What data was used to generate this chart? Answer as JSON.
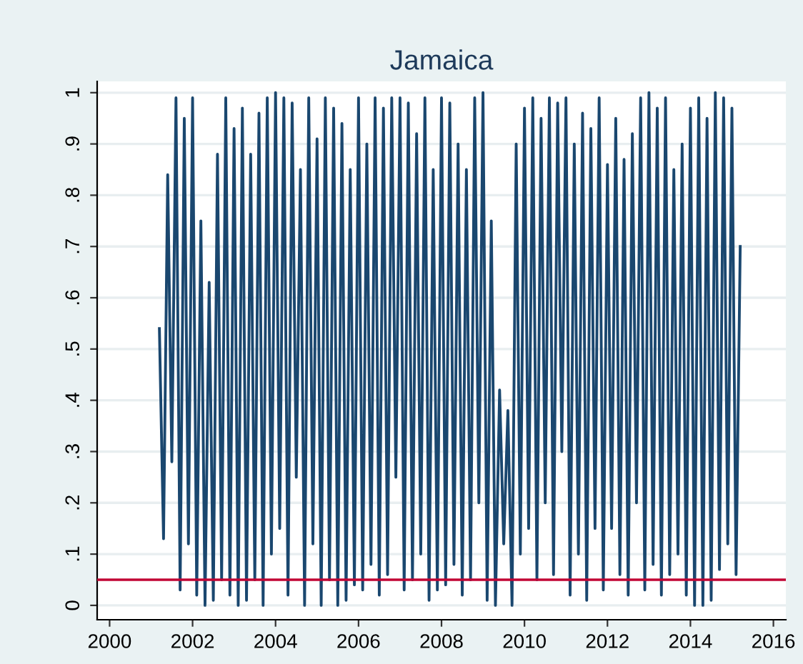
{
  "chart_data": {
    "type": "line",
    "title": "Jamaica",
    "x": [
      2001.2,
      2001.3,
      2001.4,
      2001.5,
      2001.6,
      2001.7,
      2001.8,
      2001.9,
      2002.0,
      2002.1,
      2002.2,
      2002.3,
      2002.4,
      2002.5,
      2002.6,
      2002.7,
      2002.8,
      2002.9,
      2003.0,
      2003.1,
      2003.2,
      2003.3,
      2003.4,
      2003.5,
      2003.6,
      2003.7,
      2003.8,
      2003.9,
      2004.0,
      2004.1,
      2004.2,
      2004.3,
      2004.4,
      2004.5,
      2004.6,
      2004.7,
      2004.8,
      2004.9,
      2005.0,
      2005.1,
      2005.2,
      2005.3,
      2005.4,
      2005.5,
      2005.6,
      2005.7,
      2005.8,
      2005.9,
      2006.0,
      2006.1,
      2006.2,
      2006.3,
      2006.4,
      2006.5,
      2006.6,
      2006.7,
      2006.8,
      2006.9,
      2007.0,
      2007.1,
      2007.2,
      2007.3,
      2007.4,
      2007.5,
      2007.6,
      2007.7,
      2007.8,
      2007.9,
      2008.0,
      2008.1,
      2008.2,
      2008.3,
      2008.4,
      2008.5,
      2008.6,
      2008.7,
      2008.8,
      2008.9,
      2009.0,
      2009.1,
      2009.2,
      2009.3,
      2009.4,
      2009.5,
      2009.6,
      2009.7,
      2009.8,
      2009.9,
      2010.0,
      2010.1,
      2010.2,
      2010.3,
      2010.4,
      2010.5,
      2010.6,
      2010.7,
      2010.8,
      2010.9,
      2011.0,
      2011.1,
      2011.2,
      2011.3,
      2011.4,
      2011.5,
      2011.6,
      2011.7,
      2011.8,
      2011.9,
      2012.0,
      2012.1,
      2012.2,
      2012.3,
      2012.4,
      2012.5,
      2012.6,
      2012.7,
      2012.8,
      2012.9,
      2013.0,
      2013.1,
      2013.2,
      2013.3,
      2013.4,
      2013.5,
      2013.6,
      2013.7,
      2013.8,
      2013.9,
      2014.0,
      2014.1,
      2014.2,
      2014.3,
      2014.4,
      2014.5,
      2014.6,
      2014.7,
      2014.8,
      2014.9,
      2015.0,
      2015.1,
      2015.2
    ],
    "series": [
      {
        "color": "#1a476f",
        "values": [
          0.54,
          0.13,
          0.84,
          0.28,
          0.99,
          0.03,
          0.95,
          0.12,
          0.99,
          0.02,
          0.75,
          0.0,
          0.63,
          0.01,
          0.88,
          0.05,
          0.99,
          0.02,
          0.93,
          0.0,
          0.97,
          0.01,
          0.88,
          0.05,
          0.96,
          0.0,
          0.99,
          0.1,
          1.0,
          0.15,
          0.99,
          0.02,
          0.98,
          0.25,
          0.85,
          0.0,
          0.99,
          0.12,
          0.91,
          0.0,
          0.99,
          0.05,
          0.97,
          0.0,
          0.94,
          0.01,
          0.85,
          0.04,
          0.99,
          0.03,
          0.9,
          0.08,
          0.99,
          0.02,
          0.97,
          0.06,
          0.99,
          0.25,
          0.99,
          0.03,
          0.98,
          0.05,
          0.92,
          0.1,
          0.99,
          0.01,
          0.85,
          0.03,
          0.99,
          0.04,
          0.98,
          0.08,
          0.9,
          0.02,
          0.85,
          0.05,
          0.99,
          0.2,
          1.0,
          0.01,
          0.75,
          0.0,
          0.42,
          0.12,
          0.38,
          0.0,
          0.9,
          0.1,
          0.97,
          0.15,
          0.99,
          0.05,
          0.95,
          0.2,
          0.99,
          0.06,
          0.98,
          0.3,
          0.99,
          0.02,
          0.9,
          0.1,
          0.96,
          0.01,
          0.93,
          0.15,
          0.99,
          0.03,
          0.86,
          0.15,
          0.95,
          0.06,
          0.87,
          0.02,
          0.92,
          0.2,
          0.99,
          0.03,
          1.0,
          0.08,
          0.97,
          0.02,
          0.99,
          0.06,
          0.85,
          0.1,
          0.9,
          0.02,
          0.97,
          0.0,
          0.99,
          0.0,
          0.95,
          0.01,
          1.0,
          0.07,
          0.99,
          0.12,
          0.97,
          0.06,
          0.7
        ]
      }
    ],
    "xlim": [
      1999.7,
      2016.3
    ],
    "ylim": [
      -0.028,
      1.022
    ],
    "xticks": [
      2000,
      2002,
      2004,
      2006,
      2008,
      2010,
      2012,
      2014,
      2016
    ],
    "yticks": [
      0,
      {
        "value": 0.1,
        "label": ".1"
      },
      {
        "value": 0.2,
        "label": ".2"
      },
      {
        "value": 0.3,
        "label": ".3"
      },
      {
        "value": 0.4,
        "label": ".4"
      },
      {
        "value": 0.5,
        "label": ".5"
      },
      {
        "value": 0.6,
        "label": ".6"
      },
      {
        "value": 0.7,
        "label": ".7"
      },
      {
        "value": 0.8,
        "label": ".8"
      },
      {
        "value": 0.9,
        "label": ".9"
      },
      1
    ],
    "ref_lines": [
      {
        "axis": "y",
        "value": 0.05,
        "color": "#c10534",
        "line_style": "solid"
      }
    ],
    "grid": "y",
    "legend": false
  }
}
